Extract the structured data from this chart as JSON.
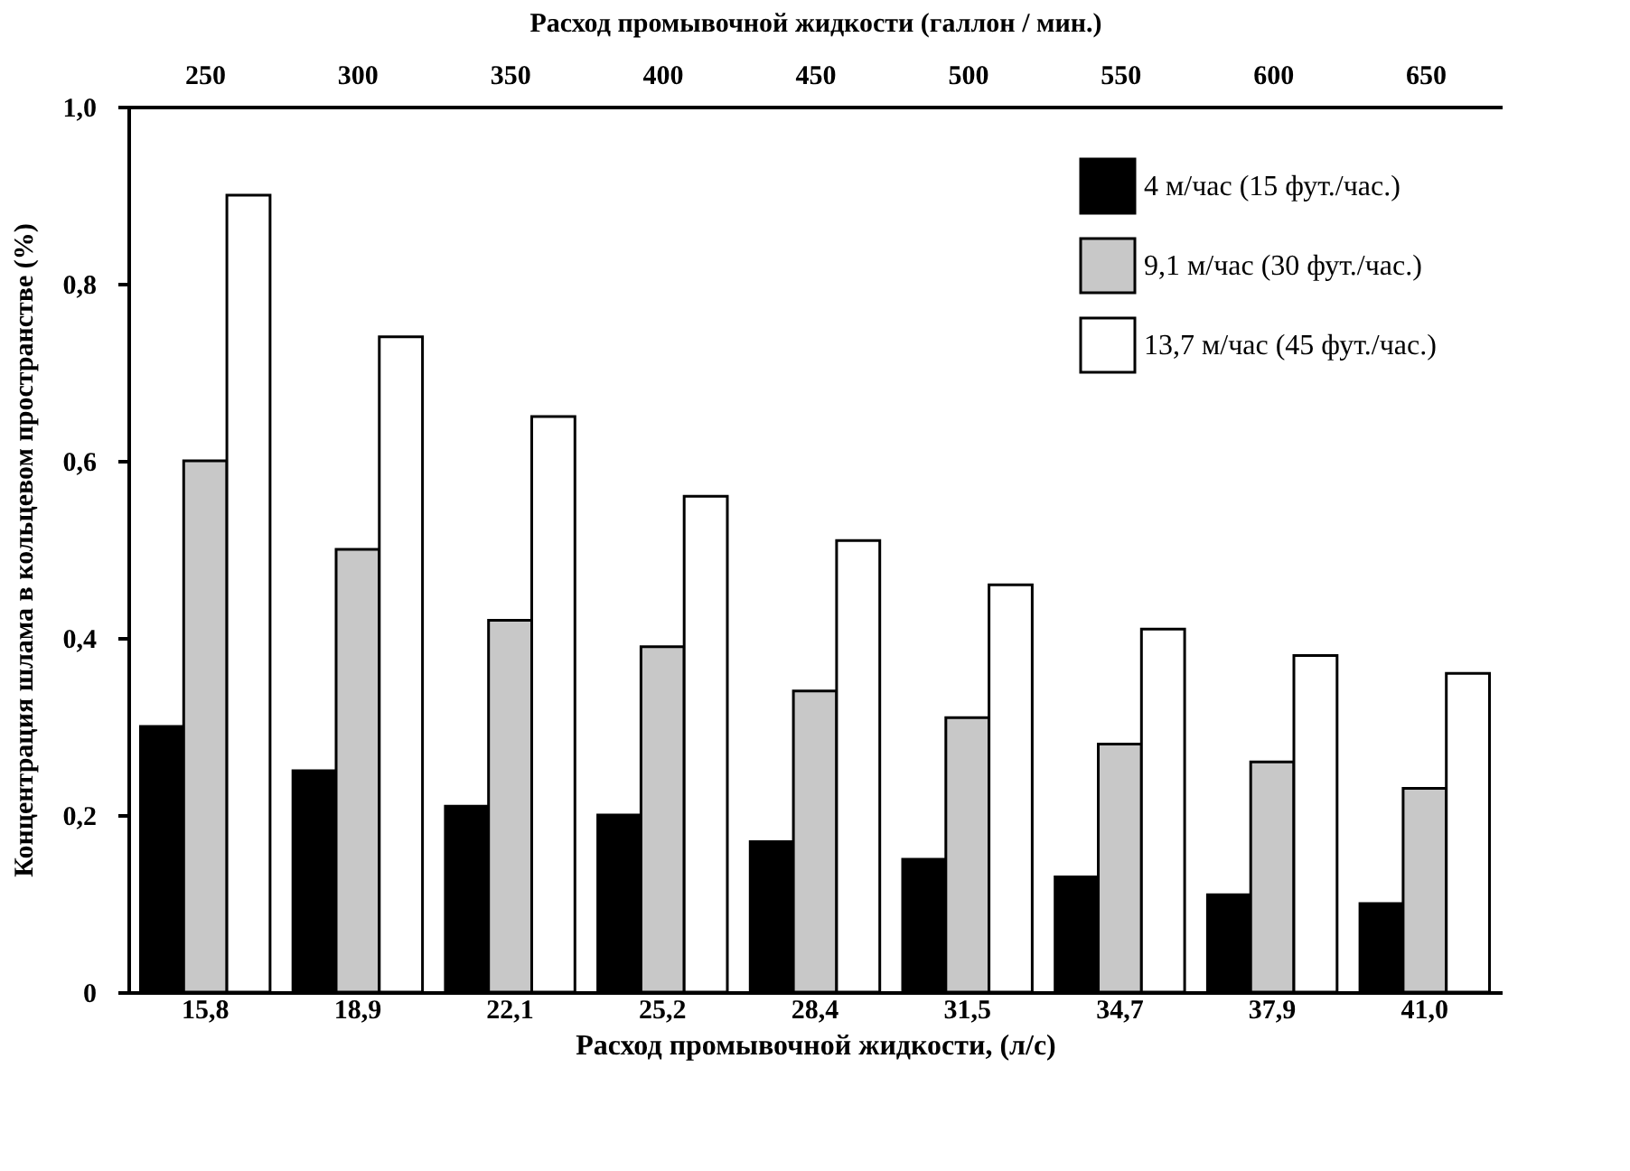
{
  "chart_data": {
    "type": "bar",
    "xlabel": "Расход промывочной жидкости, (л/с)",
    "x2label": "Расход промывочной жидкости  (галлон / мин.)",
    "ylabel": "Концентрация шлама в кольцевом пространстве (%)",
    "categories": [
      "15,8",
      "18,9",
      "22,1",
      "25,2",
      "28,4",
      "31,5",
      "34,7",
      "37,9",
      "41,0"
    ],
    "series": [
      {
        "name": "4    м/час   (15 фут./час.)",
        "color": "#000000",
        "values": [
          0.3,
          0.25,
          0.21,
          0.2,
          0.17,
          0.15,
          0.13,
          0.11,
          0.1
        ]
      },
      {
        "name": "9,1  м/час  (30 фут./час.)",
        "color": "#c8c8c8",
        "values": [
          0.6,
          0.5,
          0.42,
          0.39,
          0.34,
          0.31,
          0.28,
          0.26,
          0.23
        ]
      },
      {
        "name": "13,7  м/час  (45 фут./час.)",
        "color": "#ffffff",
        "values": [
          0.9,
          0.74,
          0.65,
          0.56,
          0.51,
          0.46,
          0.41,
          0.38,
          0.36
        ]
      }
    ],
    "ylim": [
      0,
      1
    ],
    "yticks": [
      0,
      {
        "value": 0.2,
        "label": "0,2"
      },
      {
        "value": 0.4,
        "label": "0,4"
      },
      {
        "value": 0.6,
        "label": "0,6"
      },
      {
        "value": 0.8,
        "label": "0,8"
      },
      {
        "value": 1,
        "label": "1,0"
      }
    ],
    "x2lim": [
      225,
      675
    ],
    "x2ticks": [
      250,
      300,
      350,
      400,
      450,
      500,
      550,
      600,
      650
    ],
    "legend": "top right"
  }
}
